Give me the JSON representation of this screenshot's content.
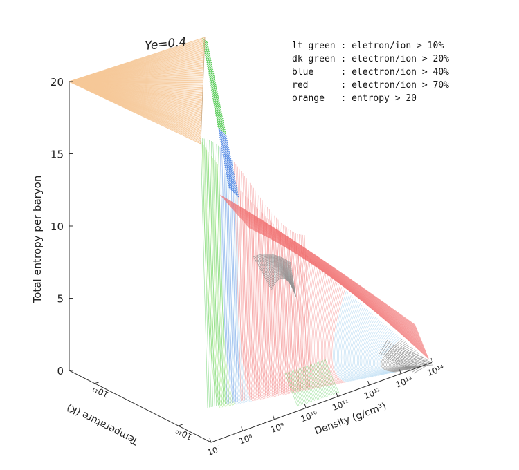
{
  "chart_data": {
    "type": "surface",
    "title": "Ye=0.4",
    "xlabel": "Density (g/cm³)",
    "ylabel": "Temperature (K)",
    "zlabel": "Total entropy per baryon",
    "x_ticks": [
      "10⁷",
      "10⁸",
      "10⁹",
      "10¹⁰",
      "10¹¹",
      "10¹²",
      "10¹³",
      "10¹⁴"
    ],
    "y_ticks": [
      "10¹¹",
      "10¹⁰"
    ],
    "z_ticks": [
      "0",
      "5",
      "10",
      "15",
      "20"
    ],
    "zlim": [
      0,
      20
    ],
    "xlim_log10": [
      7,
      14
    ],
    "legend": [
      "lt green : eletron/ion > 10%",
      "dk green : electron/ion > 20%",
      "blue     : electron/ion > 40%",
      "red      : electron/ion > 70%",
      "orange   : entropy > 20"
    ],
    "colors": {
      "lt_green": "#a9e98a",
      "dk_green": "#2fbf2f",
      "lt_blue": "#b3d8f2",
      "blue": "#3a78e0",
      "red": "#f06a6a",
      "lt_red": "#f7a3a3",
      "orange": "#f6c898",
      "gray": "#8c8c8c"
    }
  }
}
